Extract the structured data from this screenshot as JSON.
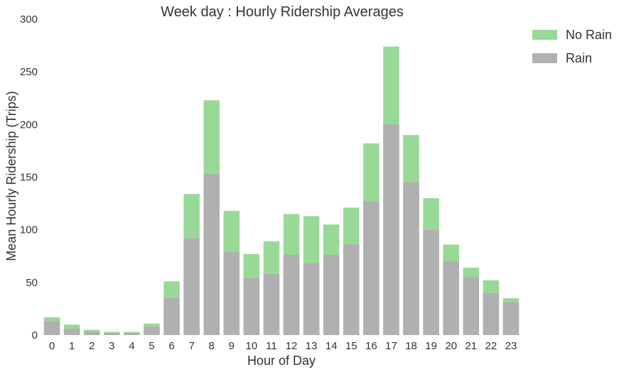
{
  "chart_data": {
    "type": "bar",
    "title": "Week day : Hourly Ridership Averages",
    "xlabel": "Hour of Day",
    "ylabel": "Mean Hourly Ridership (Trips)",
    "ylim": [
      0,
      300
    ],
    "yticks": [
      "0",
      "50",
      "100",
      "150",
      "200",
      "250",
      "300"
    ],
    "categories": [
      "0",
      "1",
      "2",
      "3",
      "4",
      "5",
      "6",
      "7",
      "8",
      "9",
      "10",
      "11",
      "12",
      "13",
      "14",
      "15",
      "16",
      "17",
      "18",
      "19",
      "20",
      "21",
      "22",
      "23"
    ],
    "series": [
      {
        "name": "No Rain",
        "color": "#98d998",
        "values": [
          17,
          10,
          5,
          3,
          3,
          11,
          51,
          134,
          223,
          118,
          77,
          89,
          115,
          113,
          105,
          121,
          182,
          274,
          190,
          130,
          86,
          64,
          52,
          35
        ]
      },
      {
        "name": "Rain",
        "color": "#b0b0b0",
        "values": [
          13,
          6,
          3,
          2,
          2,
          8,
          35,
          92,
          153,
          79,
          54,
          58,
          76,
          68,
          76,
          86,
          127,
          200,
          145,
          100,
          70,
          55,
          40,
          31
        ]
      }
    ],
    "legend_position": "top-right",
    "grid": false
  }
}
